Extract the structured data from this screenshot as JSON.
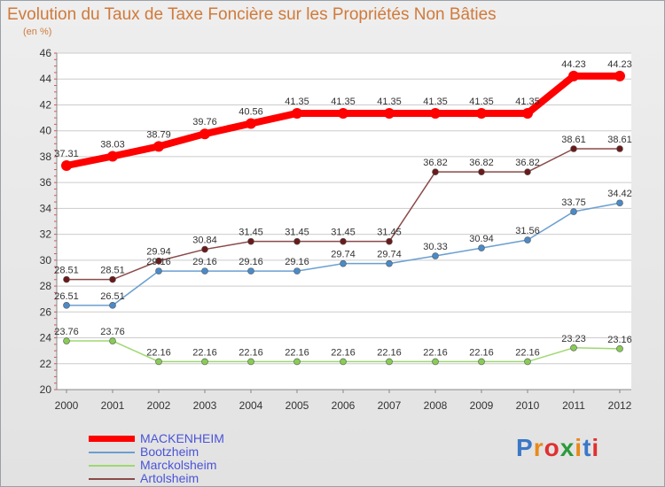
{
  "title": "Evolution du Taux de Taxe Foncière sur les Propriétés Non Bâties",
  "subtitle": "(en %)",
  "logo": {
    "text": "Proxiti",
    "colors": [
      "#3a78c8",
      "#e88a1a",
      "#e03030",
      "#2c9a3c",
      "#e88a1a",
      "#3a78c8",
      "#e03030"
    ]
  },
  "chart_data": {
    "type": "line",
    "x": [
      "2000",
      "2001",
      "2002",
      "2003",
      "2004",
      "2005",
      "2006",
      "2007",
      "2008",
      "2009",
      "2010",
      "2011",
      "2012"
    ],
    "ylim": [
      20,
      46
    ],
    "yticks": [
      20,
      22,
      24,
      26,
      28,
      30,
      32,
      34,
      36,
      38,
      40,
      42,
      44,
      46
    ],
    "ylabel": "(en %)",
    "grid": "horizontal",
    "legend_position": "bottom-left",
    "series": [
      {
        "name": "MACKENHEIM",
        "color": "#ff0000",
        "marker": "#ff0000",
        "values": [
          37.31,
          38.03,
          38.79,
          39.76,
          40.56,
          41.35,
          41.35,
          41.35,
          41.35,
          41.35,
          41.35,
          44.23,
          44.23
        ],
        "labels": [
          "37.31",
          "38.03",
          "38.79",
          "39.76",
          "40.56",
          "41.35",
          "41.35",
          "41.35",
          "41.35",
          "41.35",
          "41.35",
          "44.23",
          "44.23"
        ]
      },
      {
        "name": "Bootzheim",
        "color": "#6a9fd0",
        "marker": "#4a8ac8",
        "values": [
          26.51,
          26.51,
          29.16,
          29.16,
          29.16,
          29.16,
          29.74,
          29.74,
          30.33,
          30.94,
          31.56,
          33.75,
          34.42
        ],
        "labels": [
          "26.51",
          "26.51",
          "29.16",
          "29.16",
          "29.16",
          "29.16",
          "29.74",
          "29.74",
          "30.33",
          "30.94",
          "31.56",
          "33.75",
          "34.42"
        ]
      },
      {
        "name": "Marckolsheim",
        "color": "#9ed870",
        "marker": "#88cc55",
        "values": [
          23.76,
          23.76,
          22.16,
          22.16,
          22.16,
          22.16,
          22.16,
          22.16,
          22.16,
          22.16,
          22.16,
          23.23,
          23.16
        ],
        "labels": [
          "23.76",
          "23.76",
          "22.16",
          "22.16",
          "22.16",
          "22.16",
          "22.16",
          "22.16",
          "22.16",
          "22.16",
          "22.16",
          "23.23",
          "23.16"
        ]
      },
      {
        "name": "Artolsheim",
        "color": "#8a4a4a",
        "marker": "#6a1a1a",
        "values": [
          28.51,
          28.51,
          29.94,
          30.84,
          31.45,
          31.45,
          31.45,
          31.45,
          36.82,
          36.82,
          36.82,
          38.61,
          38.61
        ],
        "labels": [
          "28.51",
          "28.51",
          "29.94",
          "30.84",
          "31.45",
          "31.45",
          "31.45",
          "31.45",
          "36.82",
          "36.82",
          "36.82",
          "38.61",
          "38.61"
        ]
      }
    ]
  }
}
